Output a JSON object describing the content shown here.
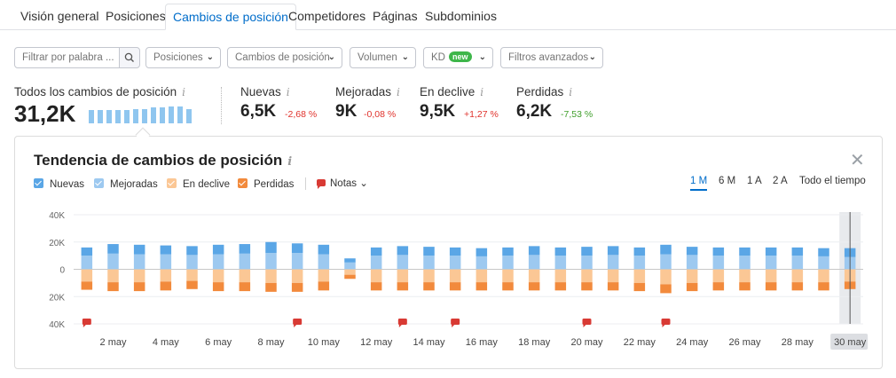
{
  "tabs": [
    {
      "label": "Visión general"
    },
    {
      "label": "Posiciones"
    },
    {
      "label": "Cambios de posición"
    },
    {
      "label": "Competidores"
    },
    {
      "label": "Páginas"
    },
    {
      "label": "Subdominios"
    }
  ],
  "filters": {
    "search_placeholder": "Filtrar por palabra ...",
    "positions": "Posiciones",
    "position_changes": "Cambios de posición",
    "volume": "Volumen",
    "kd": "KD",
    "kd_badge": "new",
    "advanced": "Filtros avanzados"
  },
  "summary": {
    "total_label": "Todos los cambios de posición",
    "total_value": "31,2K",
    "info_glyph": "i",
    "metrics": [
      {
        "label": "Nuevas",
        "value": "6,5K",
        "delta": "-2,68 %"
      },
      {
        "label": "Mejoradas",
        "value": "9K",
        "delta": "-0,08 %"
      },
      {
        "label": "En declive",
        "value": "9,5K",
        "delta": "+1,27 %"
      },
      {
        "label": "Perdidas",
        "value": "6,2K",
        "delta": "-7,53 %"
      }
    ],
    "mini_trend": [
      14,
      14,
      14,
      14,
      14,
      15,
      15,
      17,
      17,
      18,
      18,
      15
    ]
  },
  "panel": {
    "title": "Tendencia de cambios de posición",
    "close_glyph": "✕",
    "legend": [
      {
        "label": "Nuevas",
        "color": "#5aa6e6"
      },
      {
        "label": "Mejoradas",
        "color": "#9dc9f0"
      },
      {
        "label": "En declive",
        "color": "#fbc795"
      },
      {
        "label": "Perdidas",
        "color": "#f28a3c"
      }
    ],
    "notes_label": "Notas",
    "notes_chevron": "⌄",
    "periods": [
      {
        "label": "1 M",
        "active": true
      },
      {
        "label": "6 M"
      },
      {
        "label": "1 A"
      },
      {
        "label": "2 A"
      },
      {
        "label": "Todo el tiempo"
      }
    ]
  },
  "chart_data": {
    "type": "bar",
    "categories": [
      "1 may",
      "2 may",
      "3 may",
      "4 may",
      "5 may",
      "6 may",
      "7 may",
      "8 may",
      "9 may",
      "10 may",
      "11 may",
      "12 may",
      "13 may",
      "14 may",
      "15 may",
      "16 may",
      "17 may",
      "18 may",
      "19 may",
      "20 may",
      "21 may",
      "22 may",
      "23 may",
      "24 may",
      "25 may",
      "26 may",
      "27 may",
      "28 may",
      "29 may",
      "30 may"
    ],
    "x_tick_labels": [
      "2 may",
      "4 may",
      "6 may",
      "8 may",
      "10 may",
      "12 may",
      "14 may",
      "16 may",
      "18 may",
      "20 may",
      "22 may",
      "24 may",
      "26 may",
      "28 may",
      "30 may"
    ],
    "y_ticks": [
      "40K",
      "20K",
      "0",
      "20K",
      "40K"
    ],
    "ylim": [
      -40000,
      40000
    ],
    "series": [
      {
        "name": "Nuevas",
        "color": "#5aa6e6",
        "values": [
          6000,
          7000,
          7000,
          6500,
          6500,
          7000,
          7000,
          8000,
          7000,
          7000,
          3000,
          6000,
          6500,
          6500,
          6000,
          6000,
          6000,
          6500,
          6000,
          6500,
          6500,
          6000,
          7000,
          6000,
          6000,
          6000,
          6000,
          6000,
          6000,
          6500
        ]
      },
      {
        "name": "Mejoradas",
        "color": "#9dc9f0",
        "values": [
          10000,
          11500,
          11000,
          11000,
          10500,
          11000,
          11500,
          12000,
          12000,
          11000,
          5000,
          10000,
          10500,
          10000,
          10000,
          9500,
          10000,
          10500,
          10000,
          10000,
          10500,
          10000,
          11000,
          10500,
          10000,
          10000,
          10000,
          10000,
          9500,
          9000
        ]
      },
      {
        "name": "En declive",
        "color": "#fbc795",
        "values": [
          -9000,
          -9500,
          -9500,
          -9000,
          -8500,
          -9500,
          -9500,
          -10000,
          -10000,
          -9000,
          -4000,
          -9500,
          -9500,
          -9500,
          -9500,
          -9500,
          -9500,
          -9500,
          -9500,
          -9500,
          -9500,
          -10000,
          -11000,
          -10000,
          -9500,
          -9500,
          -9500,
          -9500,
          -9500,
          -9000
        ]
      },
      {
        "name": "Perdidas",
        "color": "#f28a3c",
        "values": [
          -6000,
          -6500,
          -6500,
          -6500,
          -6000,
          -6500,
          -6500,
          -6500,
          -6500,
          -6500,
          -3000,
          -6000,
          -6000,
          -6000,
          -6000,
          -6000,
          -6000,
          -6000,
          -6000,
          -6000,
          -6000,
          -6000,
          -6500,
          -6000,
          -6000,
          -6000,
          -6000,
          -6000,
          -6000,
          -5500
        ]
      }
    ],
    "notes_on": [
      "1 may",
      "9 may",
      "13 may",
      "15 may",
      "20 may",
      "23 may"
    ],
    "highlighted": "30 may",
    "grid": true
  }
}
